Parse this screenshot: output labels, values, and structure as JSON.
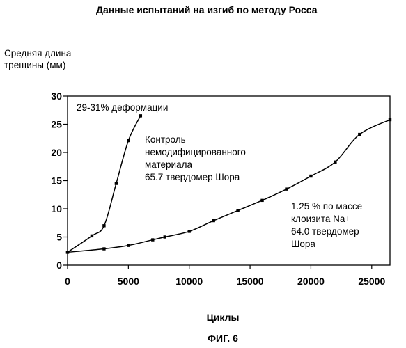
{
  "chart_data": {
    "type": "line",
    "title": "Данные испытаний на изгиб по методу Росса",
    "ylabel": "Средняя длина\nтрещины (мм)",
    "xlabel": "Циклы",
    "figure_label": "ФИГ. 6",
    "xlim": [
      0,
      26500
    ],
    "ylim": [
      0,
      30
    ],
    "x_ticks": [
      0,
      5000,
      10000,
      15000,
      20000,
      25000
    ],
    "y_ticks": [
      0,
      5,
      10,
      15,
      20,
      25,
      30
    ],
    "grid": false,
    "series": [
      {
        "name": "Контроль немодифицированного материала 65.7 твердомер Шора",
        "x": [
          0,
          2000,
          3000,
          4000,
          5000,
          6000
        ],
        "y": [
          2.3,
          5.2,
          7.0,
          14.5,
          22.1,
          26.5
        ]
      },
      {
        "name": "1.25 % по массе клоизита Na+ 64.0 твердомер Шора",
        "x": [
          0,
          3000,
          5000,
          7000,
          8000,
          10000,
          12000,
          14000,
          16000,
          18000,
          20000,
          22000,
          24000,
          26500
        ],
        "y": [
          2.3,
          2.9,
          3.5,
          4.5,
          5.0,
          6.0,
          7.9,
          9.7,
          11.5,
          13.5,
          15.8,
          18.3,
          23.2,
          25.8
        ]
      }
    ],
    "annotations": [
      {
        "text": "29-31% деформации"
      },
      {
        "text": "Контроль\nнемодифицированного\nматериала\n65.7 твердомер Шора"
      },
      {
        "text": "1.25 % по массе\nклоизита Na+\n64.0 твердомер\nШора"
      }
    ]
  }
}
